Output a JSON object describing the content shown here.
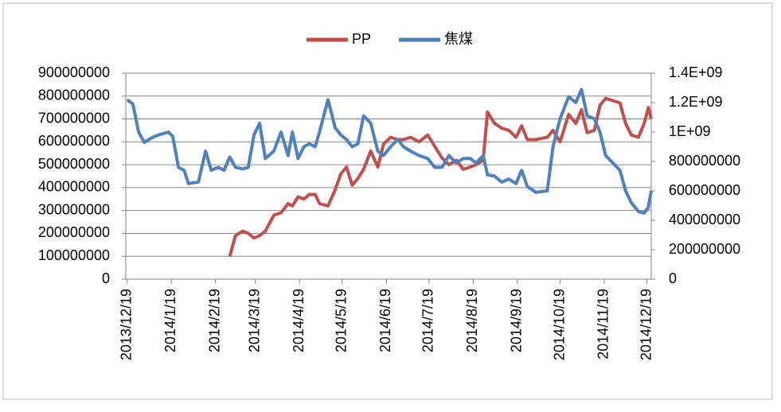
{
  "chart_data": {
    "type": "line",
    "x": [
      "2013/12/19",
      "2013/12/23",
      "2013/12/27",
      "2013/12/31",
      "2014/1/5",
      "2014/1/10",
      "2014/1/17",
      "2014/1/20",
      "2014/1/24",
      "2014/1/28",
      "2014/1/31",
      "2014/2/7",
      "2014/2/12",
      "2014/2/16",
      "2014/2/21",
      "2014/2/25",
      "2014/3/1",
      "2014/3/5",
      "2014/3/10",
      "2014/3/14",
      "2014/3/18",
      "2014/3/22",
      "2014/3/26",
      "2014/4/1",
      "2014/4/6",
      "2014/4/11",
      "2014/4/14",
      "2014/4/18",
      "2014/4/22",
      "2014/4/26",
      "2014/4/30",
      "2014/5/3",
      "2014/5/9",
      "2014/5/14",
      "2014/5/18",
      "2014/5/22",
      "2014/5/26",
      "2014/5/30",
      "2014/6/3",
      "2014/6/8",
      "2014/6/13",
      "2014/6/17",
      "2014/6/22",
      "2014/6/27",
      "2014/7/1",
      "2014/7/6",
      "2014/7/12",
      "2014/7/18",
      "2014/7/23",
      "2014/7/28",
      "2014/8/2",
      "2014/8/7",
      "2014/8/12",
      "2014/8/17",
      "2014/8/21",
      "2014/8/26",
      "2014/8/29",
      "2014/9/3",
      "2014/9/8",
      "2014/9/13",
      "2014/9/18",
      "2014/9/22",
      "2014/9/26",
      "2014/10/2",
      "2014/10/10",
      "2014/10/14",
      "2014/10/19",
      "2014/10/25",
      "2014/10/30",
      "2014/11/3",
      "2014/11/7",
      "2014/11/12",
      "2014/11/16",
      "2014/11/20",
      "2014/11/25",
      "2014/11/30",
      "2014/12/4",
      "2014/12/8",
      "2014/12/13",
      "2014/12/17",
      "2014/12/20",
      "2014/12/22"
    ],
    "series": [
      {
        "name": "PP",
        "color": "#c0504d",
        "axis": "y",
        "values": [
          null,
          null,
          null,
          null,
          null,
          null,
          null,
          null,
          null,
          null,
          null,
          null,
          null,
          null,
          null,
          null,
          100000000,
          190000000,
          210000000,
          200000000,
          180000000,
          190000000,
          210000000,
          280000000,
          290000000,
          330000000,
          320000000,
          360000000,
          350000000,
          370000000,
          370000000,
          330000000,
          320000000,
          390000000,
          460000000,
          490000000,
          410000000,
          440000000,
          480000000,
          560000000,
          490000000,
          590000000,
          620000000,
          610000000,
          610000000,
          620000000,
          600000000,
          630000000,
          580000000,
          530000000,
          500000000,
          520000000,
          480000000,
          490000000,
          500000000,
          520000000,
          730000000,
          680000000,
          660000000,
          650000000,
          620000000,
          670000000,
          610000000,
          610000000,
          620000000,
          650000000,
          600000000,
          720000000,
          680000000,
          740000000,
          640000000,
          650000000,
          760000000,
          790000000,
          780000000,
          770000000,
          680000000,
          630000000,
          620000000,
          680000000,
          750000000,
          700000000
        ]
      },
      {
        "name": "焦煤",
        "color": "#4f81bd",
        "axis": "y2",
        "values": [
          1220000000,
          1190000000,
          1000000000,
          930000000,
          960000000,
          980000000,
          1000000000,
          970000000,
          760000000,
          740000000,
          650000000,
          660000000,
          870000000,
          740000000,
          760000000,
          740000000,
          830000000,
          760000000,
          750000000,
          760000000,
          980000000,
          1060000000,
          820000000,
          870000000,
          1000000000,
          840000000,
          1000000000,
          820000000,
          900000000,
          920000000,
          900000000,
          1000000000,
          1220000000,
          1030000000,
          980000000,
          950000000,
          900000000,
          920000000,
          1110000000,
          1060000000,
          870000000,
          840000000,
          900000000,
          950000000,
          900000000,
          870000000,
          840000000,
          820000000,
          760000000,
          760000000,
          840000000,
          790000000,
          820000000,
          820000000,
          790000000,
          840000000,
          710000000,
          700000000,
          660000000,
          680000000,
          650000000,
          740000000,
          630000000,
          590000000,
          600000000,
          900000000,
          1090000000,
          1240000000,
          1200000000,
          1290000000,
          1110000000,
          1090000000,
          1000000000,
          840000000,
          790000000,
          740000000,
          600000000,
          520000000,
          460000000,
          450000000,
          490000000,
          600000000
        ]
      }
    ],
    "xlim": [
      "2013/12/18",
      "2014/12/22"
    ],
    "xticks": [
      "2013/12/19",
      "2014/1/19",
      "2014/2/19",
      "2014/3/19",
      "2014/4/19",
      "2014/5/19",
      "2014/6/19",
      "2014/7/19",
      "2014/8/19",
      "2014/9/19",
      "2014/10/19",
      "2014/11/19",
      "2014/12/19"
    ],
    "ylim": [
      0,
      900000000
    ],
    "yticks": [
      0,
      100000000,
      200000000,
      300000000,
      400000000,
      500000000,
      600000000,
      700000000,
      800000000,
      900000000
    ],
    "y2lim": [
      0,
      1400000000
    ],
    "y2ticks": [
      0,
      200000000,
      400000000,
      600000000,
      800000000,
      {
        "value": 1000000000,
        "label": "1E+09"
      },
      {
        "value": 1200000000,
        "label": "1.2E+09"
      },
      {
        "value": 1400000000,
        "label": "1.4E+09"
      }
    ],
    "grid": true,
    "legend": "top"
  }
}
